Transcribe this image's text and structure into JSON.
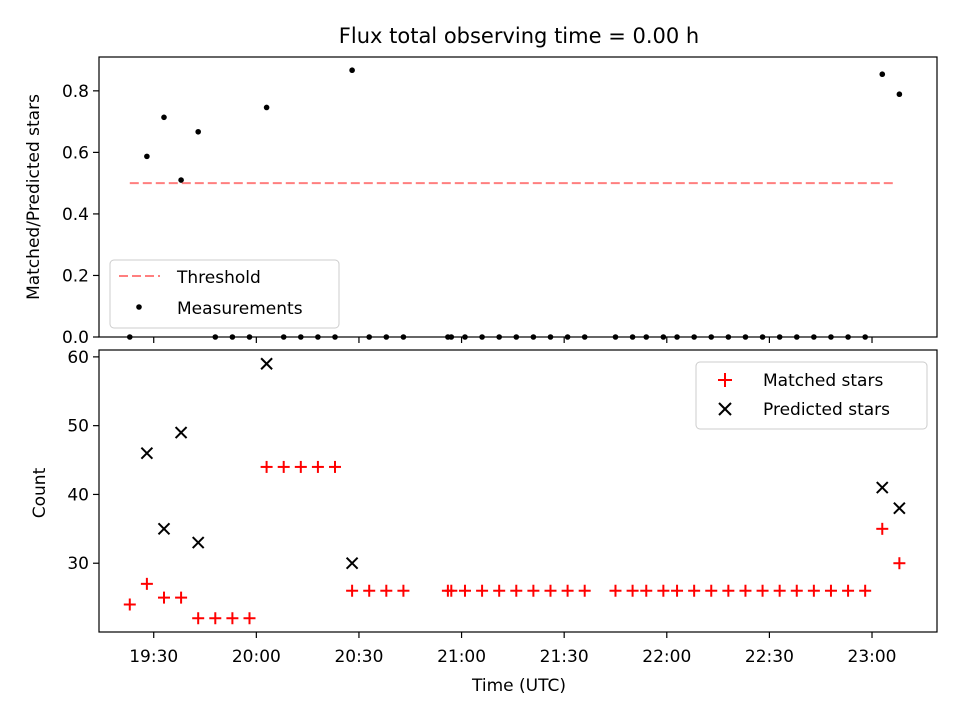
{
  "chart_data": [
    {
      "type": "scatter",
      "title": "Flux total observing time = 0.00 h",
      "xlabel": "",
      "ylabel": "Matched/Predicted stars",
      "ylim": [
        0,
        0.91
      ],
      "yticks": [
        "0.0",
        "0.2",
        "0.4",
        "0.6",
        "0.8"
      ],
      "ytick_values": [
        0,
        0.2,
        0.4,
        0.6,
        0.8
      ],
      "legend_position": "lower-left",
      "threshold": {
        "name": "Threshold",
        "value": 0.5,
        "x_range": [
          "19:23",
          "23:07"
        ],
        "color": "#ff7f7f"
      },
      "series": [
        {
          "name": "Measurements",
          "color": "#000000",
          "x": [
            "19:23",
            "19:28",
            "19:33",
            "19:38",
            "19:43",
            "19:48",
            "19:53",
            "19:58",
            "20:03",
            "20:08",
            "20:13",
            "20:18",
            "20:23",
            "20:28",
            "20:33",
            "20:38",
            "20:43",
            "20:56",
            "20:57",
            "21:01",
            "21:06",
            "21:11",
            "21:16",
            "21:21",
            "21:26",
            "21:31",
            "21:36",
            "21:45",
            "21:50",
            "21:54",
            "21:59",
            "22:03",
            "22:08",
            "22:13",
            "22:18",
            "22:23",
            "22:28",
            "22:33",
            "22:38",
            "22:43",
            "22:48",
            "22:53",
            "22:58",
            "23:03",
            "23:08"
          ],
          "y": [
            0,
            0.587,
            0.714,
            0.51,
            0.667,
            0,
            0,
            0,
            0.746,
            0,
            0,
            0,
            0,
            0.867,
            0,
            0,
            0,
            0,
            0,
            0,
            0,
            0,
            0,
            0,
            0,
            0,
            0,
            0,
            0,
            0,
            0,
            0,
            0,
            0,
            0,
            0,
            0,
            0,
            0,
            0,
            0,
            0,
            0,
            0.854,
            0.789
          ]
        }
      ]
    },
    {
      "type": "scatter",
      "title": "",
      "xlabel": "Time (UTC)",
      "ylabel": "Count",
      "ylim": [
        20,
        61
      ],
      "yticks": [
        "30",
        "40",
        "50",
        "60"
      ],
      "ytick_values": [
        30,
        40,
        50,
        60
      ],
      "xlim": [
        "19:14",
        "23:19"
      ],
      "xticks": [
        "19:30",
        "20:00",
        "20:30",
        "21:00",
        "21:30",
        "22:00",
        "22:30",
        "23:00"
      ],
      "legend_position": "upper-right",
      "series": [
        {
          "name": "Matched stars",
          "marker": "plus",
          "color": "#ff0000",
          "x": [
            "19:23",
            "19:28",
            "19:33",
            "19:38",
            "19:43",
            "19:48",
            "19:53",
            "19:58",
            "20:03",
            "20:08",
            "20:13",
            "20:18",
            "20:23",
            "20:28",
            "20:33",
            "20:38",
            "20:43",
            "20:56",
            "20:57",
            "21:01",
            "21:06",
            "21:11",
            "21:16",
            "21:21",
            "21:26",
            "21:31",
            "21:36",
            "21:45",
            "21:50",
            "21:54",
            "21:59",
            "22:03",
            "22:08",
            "22:13",
            "22:18",
            "22:23",
            "22:28",
            "22:33",
            "22:38",
            "22:43",
            "22:48",
            "22:53",
            "22:58",
            "23:03",
            "23:08"
          ],
          "y": [
            24,
            27,
            25,
            25,
            22,
            22,
            22,
            22,
            44,
            44,
            44,
            44,
            44,
            26,
            26,
            26,
            26,
            26,
            26,
            26,
            26,
            26,
            26,
            26,
            26,
            26,
            26,
            26,
            26,
            26,
            26,
            26,
            26,
            26,
            26,
            26,
            26,
            26,
            26,
            26,
            26,
            26,
            26,
            35,
            30
          ]
        },
        {
          "name": "Predicted stars",
          "marker": "x",
          "color": "#000000",
          "x": [
            "19:28",
            "19:33",
            "19:38",
            "19:43",
            "20:03",
            "20:28",
            "23:03",
            "23:08"
          ],
          "y": [
            46,
            35,
            49,
            33,
            59,
            30,
            41,
            38
          ]
        }
      ]
    }
  ]
}
